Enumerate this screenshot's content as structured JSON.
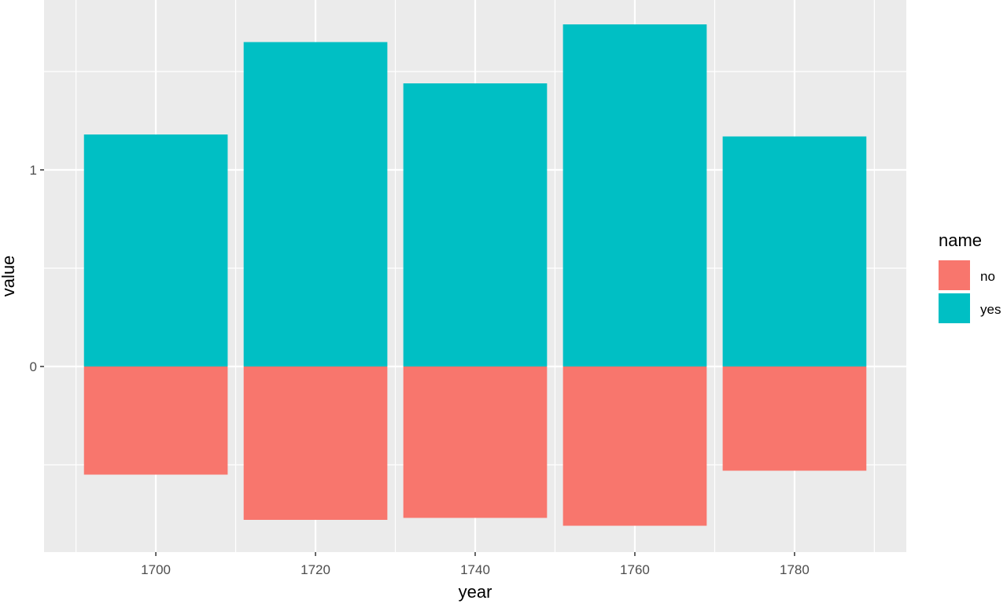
{
  "chart_data": {
    "type": "bar",
    "stacked": true,
    "title": "",
    "xlabel": "year",
    "ylabel": "value",
    "categories": [
      1700,
      1720,
      1740,
      1760,
      1780
    ],
    "series": [
      {
        "name": "no",
        "color": "#F8766D",
        "values": [
          -0.55,
          -0.78,
          -0.77,
          -0.81,
          -0.53
        ]
      },
      {
        "name": "yes",
        "color": "#00BFC4",
        "values": [
          1.18,
          1.65,
          1.44,
          1.74,
          1.17
        ]
      }
    ],
    "x_ticks": [
      1700,
      1720,
      1740,
      1760,
      1780
    ],
    "y_ticks": [
      0,
      1
    ],
    "y_minor_gridlines": [
      -0.5,
      0.5,
      1.5
    ],
    "x_minor_gridlines": [
      1690,
      1710,
      1730,
      1750,
      1770,
      1790
    ],
    "xlim": [
      1686,
      1794
    ],
    "ylim": [
      -0.944,
      1.864
    ],
    "bar_width_years": 18,
    "grid": true,
    "panel_background": "#EBEBEB",
    "legend": {
      "title": "name",
      "position": "right",
      "entries": [
        "no",
        "yes"
      ]
    }
  }
}
